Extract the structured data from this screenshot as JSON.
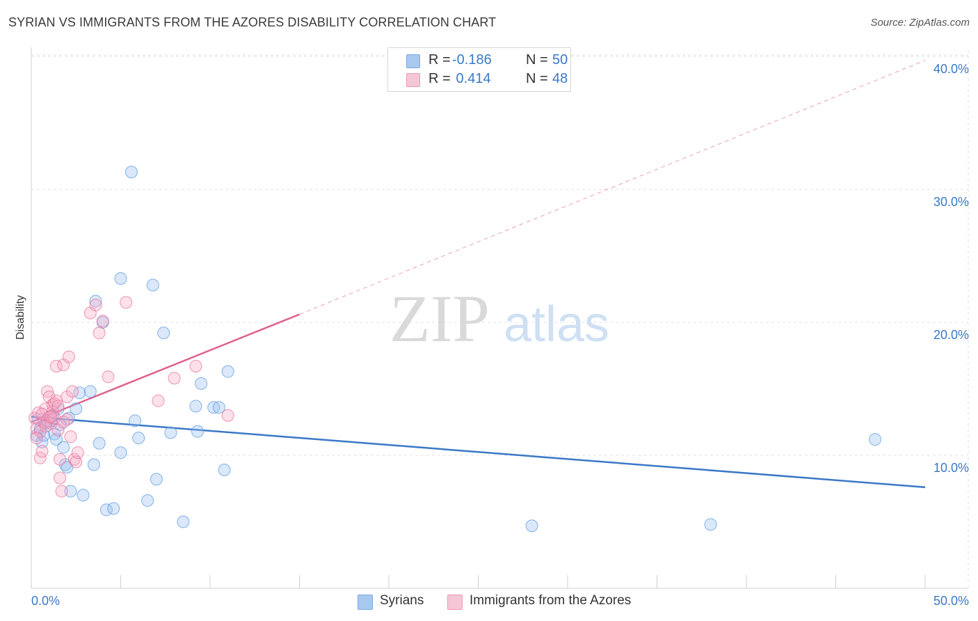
{
  "title": "SYRIAN VS IMMIGRANTS FROM THE AZORES DISABILITY CORRELATION CHART",
  "source": "Source: ZipAtlas.com",
  "watermark": {
    "part1": "ZIP",
    "part2": "atlas"
  },
  "legend": {
    "rows": [
      {
        "r_label": "R =",
        "r_value": "-0.186",
        "n_label": "N =",
        "n_value": "50",
        "color": "#a9c8f0"
      },
      {
        "r_label": "R =",
        "r_value": " 0.414",
        "n_label": "N =",
        "n_value": "48",
        "color": "#f5b8cb"
      }
    ]
  },
  "bottom_legend": [
    {
      "label": "Syrians",
      "color": "#a9c8f0"
    },
    {
      "label": "Immigrants from the Azores",
      "color": "#f5b8cb"
    }
  ],
  "chart_data": {
    "type": "scatter",
    "title": "SYRIAN VS IMMIGRANTS FROM THE AZORES DISABILITY CORRELATION CHART",
    "xlabel": "",
    "ylabel": "Disability",
    "xlim": [
      0,
      50
    ],
    "ylim": [
      0,
      42
    ],
    "x_tick_labels": [
      "0.0%",
      "50.0%"
    ],
    "y_ticks": [
      10,
      20,
      30,
      40
    ],
    "y_tick_labels": [
      "10.0%",
      "20.0%",
      "30.0%",
      "40.0%"
    ],
    "grid": true,
    "series": [
      {
        "name": "Syrians",
        "color": "#5b9be0",
        "fill": "rgba(150,190,240,0.35)",
        "points": [
          [
            0.3,
            11.5
          ],
          [
            0.5,
            12.0
          ],
          [
            0.6,
            11.0
          ],
          [
            0.7,
            11.5
          ],
          [
            0.9,
            12.5
          ],
          [
            1.0,
            12.8
          ],
          [
            1.1,
            12.6
          ],
          [
            1.2,
            13.0
          ],
          [
            1.3,
            11.6
          ],
          [
            1.4,
            11.2
          ],
          [
            1.5,
            13.5
          ],
          [
            1.6,
            12.3
          ],
          [
            1.8,
            10.6
          ],
          [
            1.9,
            9.3
          ],
          [
            2.0,
            9.1
          ],
          [
            2.1,
            12.8
          ],
          [
            2.2,
            7.3
          ],
          [
            2.5,
            13.5
          ],
          [
            2.7,
            14.7
          ],
          [
            2.9,
            7.0
          ],
          [
            3.3,
            14.8
          ],
          [
            3.5,
            9.3
          ],
          [
            3.6,
            21.6
          ],
          [
            3.8,
            10.9
          ],
          [
            4.0,
            20.0
          ],
          [
            4.2,
            5.9
          ],
          [
            4.6,
            6.0
          ],
          [
            5.0,
            23.3
          ],
          [
            5.0,
            10.2
          ],
          [
            5.6,
            31.3
          ],
          [
            5.8,
            12.6
          ],
          [
            6.0,
            11.3
          ],
          [
            6.5,
            6.6
          ],
          [
            6.8,
            22.8
          ],
          [
            7.0,
            8.2
          ],
          [
            7.4,
            19.2
          ],
          [
            7.8,
            11.7
          ],
          [
            8.5,
            5.0
          ],
          [
            9.2,
            13.7
          ],
          [
            9.5,
            15.4
          ],
          [
            9.3,
            11.8
          ],
          [
            10.2,
            13.6
          ],
          [
            10.5,
            13.6
          ],
          [
            11.0,
            16.3
          ],
          [
            10.8,
            8.9
          ],
          [
            0.4,
            12.7
          ],
          [
            0.8,
            12.4
          ],
          [
            28.0,
            4.7
          ],
          [
            38.0,
            4.8
          ],
          [
            47.2,
            11.2
          ]
        ],
        "trend": {
          "x1": 0,
          "y1": 12.9,
          "x2": 50,
          "y2": 7.6,
          "dashed_from": null
        }
      },
      {
        "name": "Immigrants from the Azores",
        "color": "#e8729c",
        "fill": "rgba(245,170,195,0.35)",
        "points": [
          [
            0.2,
            12.8
          ],
          [
            0.3,
            12.0
          ],
          [
            0.4,
            13.2
          ],
          [
            0.5,
            11.8
          ],
          [
            0.5,
            9.8
          ],
          [
            0.6,
            10.3
          ],
          [
            0.7,
            12.5
          ],
          [
            0.8,
            13.5
          ],
          [
            0.9,
            12.6
          ],
          [
            0.9,
            14.8
          ],
          [
            1.0,
            14.4
          ],
          [
            1.0,
            12.9
          ],
          [
            1.1,
            12.4
          ],
          [
            1.2,
            13.3
          ],
          [
            1.2,
            13.8
          ],
          [
            1.3,
            12.8
          ],
          [
            1.3,
            13.9
          ],
          [
            1.4,
            14.1
          ],
          [
            1.4,
            16.7
          ],
          [
            1.5,
            11.9
          ],
          [
            1.6,
            9.7
          ],
          [
            1.6,
            8.3
          ],
          [
            1.7,
            7.3
          ],
          [
            1.8,
            16.8
          ],
          [
            1.8,
            12.5
          ],
          [
            2.0,
            12.7
          ],
          [
            2.0,
            14.4
          ],
          [
            2.1,
            17.4
          ],
          [
            2.2,
            11.4
          ],
          [
            2.3,
            14.8
          ],
          [
            2.4,
            9.7
          ],
          [
            2.5,
            9.5
          ],
          [
            2.6,
            10.2
          ],
          [
            3.3,
            20.7
          ],
          [
            3.6,
            21.3
          ],
          [
            3.8,
            19.2
          ],
          [
            4.0,
            20.1
          ],
          [
            4.3,
            15.9
          ],
          [
            5.3,
            21.5
          ],
          [
            7.1,
            14.1
          ],
          [
            8.0,
            15.8
          ],
          [
            9.2,
            16.7
          ],
          [
            11.0,
            13.0
          ],
          [
            0.3,
            11.3
          ],
          [
            0.6,
            13.1
          ],
          [
            0.8,
            12.2
          ],
          [
            1.1,
            12.9
          ],
          [
            1.5,
            13.7
          ]
        ],
        "trend": {
          "x1": 0,
          "y1": 12.5,
          "x2": 15,
          "y2": 20.6,
          "dashed_to_x": 50,
          "dashed_to_y": 39.7
        }
      }
    ]
  }
}
